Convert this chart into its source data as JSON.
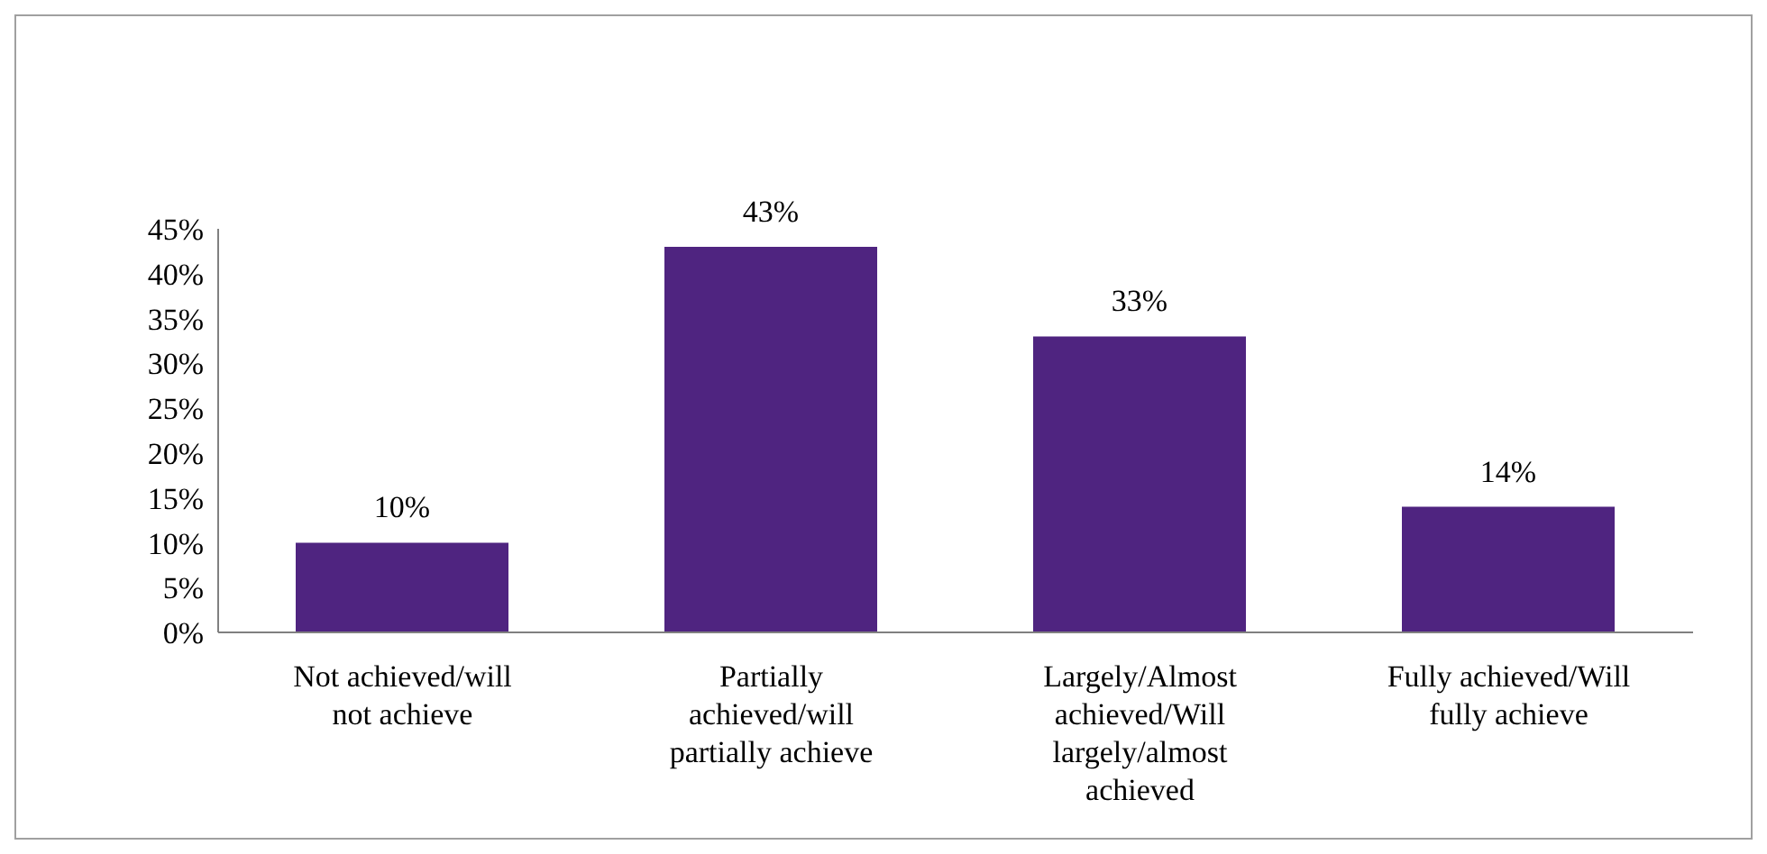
{
  "chart_data": {
    "type": "bar",
    "categories": [
      "Not achieved/will not achieve",
      "Partially achieved/will partially achieve",
      "Largely/Almost achieved/Will largely/almost achieved",
      "Fully achieved/Will fully achieve"
    ],
    "values": [
      10,
      43,
      33,
      14
    ],
    "value_labels": [
      "10%",
      "43%",
      "33%",
      "14%"
    ],
    "color": "#4f2480",
    "ylim": [
      0,
      45
    ],
    "yticks": [
      {
        "value": 0,
        "label": "0%"
      },
      {
        "value": 5,
        "label": "5%"
      },
      {
        "value": 10,
        "label": "10%"
      },
      {
        "value": 15,
        "label": "15%"
      },
      {
        "value": 20,
        "label": "20%"
      },
      {
        "value": 25,
        "label": "25%"
      },
      {
        "value": 30,
        "label": "30%"
      },
      {
        "value": 35,
        "label": "35%"
      },
      {
        "value": 40,
        "label": "40%"
      },
      {
        "value": 45,
        "label": "45%"
      }
    ],
    "grid": false,
    "legend": false
  }
}
